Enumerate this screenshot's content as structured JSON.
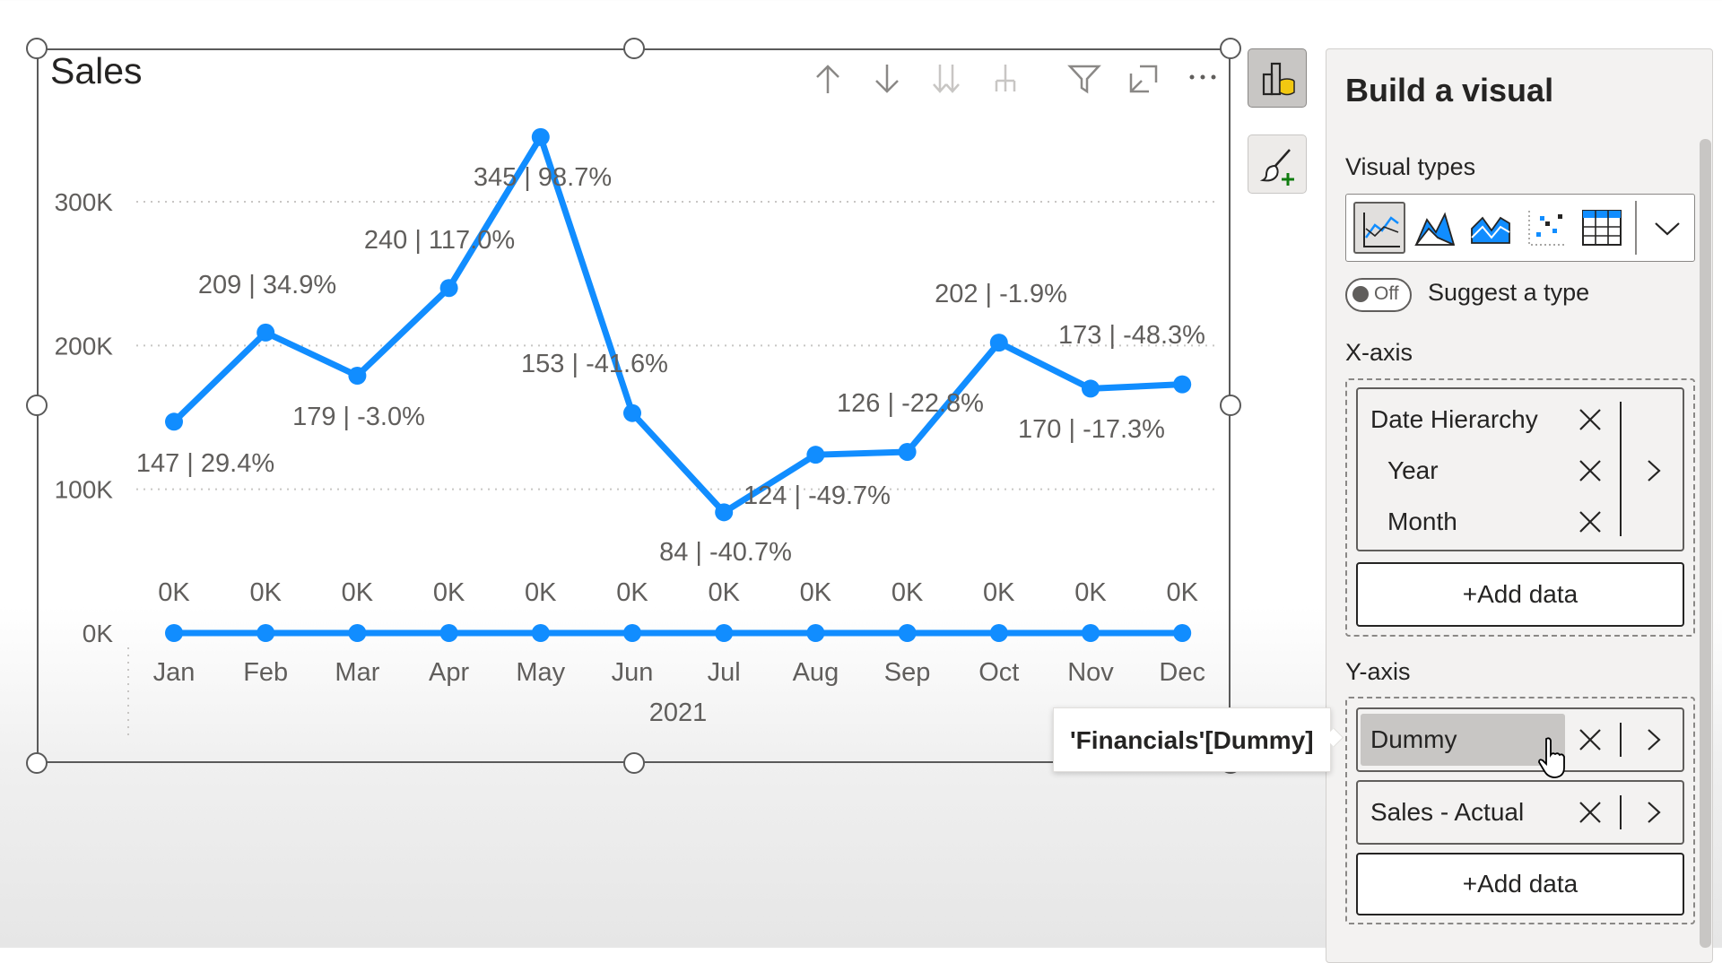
{
  "visual": {
    "title": "Sales",
    "header_icons": [
      "arrow-up-icon",
      "arrow-down-icon",
      "double-arrow-down-icon",
      "expand-hierarchy-icon",
      "filter-icon",
      "focus-mode-icon",
      "more-options-icon"
    ]
  },
  "chart_data": {
    "type": "line",
    "categories": [
      "Jan",
      "Feb",
      "Mar",
      "Apr",
      "May",
      "Jun",
      "Jul",
      "Aug",
      "Sep",
      "Oct",
      "Nov",
      "Dec"
    ],
    "x_group_label": "2021",
    "y_ticks": [
      "0K",
      "100K",
      "200K",
      "300K"
    ],
    "ylim": [
      0,
      350000
    ],
    "grid": true,
    "series": [
      {
        "values": [
          147000,
          209000,
          179000,
          240000,
          345000,
          153000,
          84000,
          124000,
          126000,
          202000,
          170000,
          173000
        ],
        "labels": [
          "147 | 29.4%",
          "209 | 34.9%",
          "179 | -3.0%",
          "240 | 117.0%",
          "345 | 98.7%",
          "153 | -41.6%",
          "84 | -40.7%",
          "124 | -49.7%",
          "126 | -22.8%",
          "202 | -1.9%",
          "170 | -17.3%",
          "173 | -48.3%"
        ],
        "color": "#118dff"
      },
      {
        "values": [
          0,
          0,
          0,
          0,
          0,
          0,
          0,
          0,
          0,
          0,
          0,
          0
        ],
        "labels": [
          "0K",
          "0K",
          "0K",
          "0K",
          "0K",
          "0K",
          "0K",
          "0K",
          "0K",
          "0K",
          "0K",
          "0K"
        ],
        "color": "#118dff"
      }
    ]
  },
  "rail": {
    "buttons": [
      "build-visual-icon",
      "format-visual-icon"
    ]
  },
  "tooltip": {
    "text": "'Financials'[Dummy]"
  },
  "pane": {
    "title": "Build a visual",
    "visual_types_label": "Visual types",
    "visual_types": [
      "line-chart-icon",
      "area-chart-icon",
      "line-stacked-chart-icon",
      "scatter-chart-icon",
      "table-icon"
    ],
    "suggest": {
      "toggle_text": "Off",
      "label": "Suggest a type"
    },
    "x_axis": {
      "label": "X-axis",
      "fields": [
        "Date Hierarchy",
        "Year",
        "Month"
      ],
      "add_label": "+Add data"
    },
    "y_axis": {
      "label": "Y-axis",
      "fields": [
        "Dummy",
        "Sales - Actual"
      ],
      "add_label": "+Add data"
    }
  }
}
